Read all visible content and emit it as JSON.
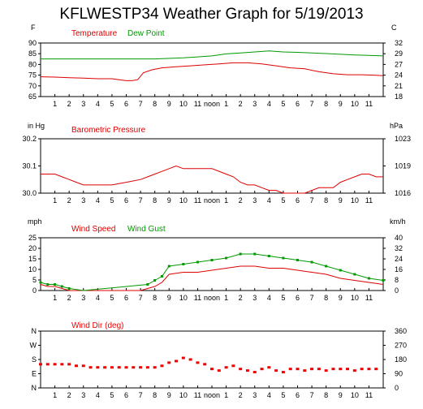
{
  "page": {
    "title": "KFLWESTP34 Weather Graph for 5/19/2013"
  },
  "colors": {
    "temperature": "#dd0000",
    "dew_point": "#009900",
    "pressure": "#dd0000",
    "wind_speed": "#dd0000",
    "wind_gust": "#009900",
    "wind_dir": "#ee0000"
  },
  "hour_labels": [
    "1",
    "2",
    "3",
    "4",
    "5",
    "6",
    "7",
    "8",
    "9",
    "10",
    "11",
    "noon",
    "1",
    "2",
    "3",
    "4",
    "5",
    "6",
    "7",
    "8",
    "9",
    "10",
    "11"
  ],
  "chart_data": [
    {
      "type": "line",
      "x_unit": "hour of day",
      "xlim": [
        0,
        24
      ],
      "left_unit": "F",
      "right_unit": "C",
      "ylim": [
        65,
        92
      ],
      "ylim_right": [
        18,
        33.3
      ],
      "left_ticks": [
        "90",
        "85",
        "80",
        "75",
        "70",
        "65"
      ],
      "right_ticks": [
        "32",
        "29",
        "27",
        "24",
        "21",
        "18"
      ],
      "series": [
        {
          "name": "Temperature",
          "x": [
            0,
            1,
            2,
            3,
            4,
            5,
            5.5,
            6,
            6.4,
            6.8,
            7.2,
            7.8,
            8.5,
            9.5,
            10.5,
            11.5,
            12.5,
            13.5,
            14.5,
            15.5,
            16.5,
            17.5,
            18.5,
            19.5,
            20.5,
            21.5,
            22.5,
            23.5,
            24
          ],
          "y": [
            75,
            74.8,
            74.5,
            74.3,
            74,
            74,
            73.5,
            73,
            73,
            73.5,
            77,
            78.5,
            79.5,
            80,
            80.5,
            81,
            81.5,
            82,
            82,
            81.5,
            80.5,
            79.5,
            79,
            77.5,
            76.5,
            76,
            76,
            75.7,
            75.5
          ]
        },
        {
          "name": "Dew Point",
          "x": [
            0,
            2,
            4,
            6,
            8,
            10,
            11,
            12,
            13,
            14,
            15,
            16,
            17,
            18,
            19,
            20,
            21,
            22,
            23,
            24
          ],
          "y": [
            84,
            84,
            84,
            84,
            84,
            84.5,
            85,
            85.5,
            86.5,
            87,
            87.5,
            88,
            87.5,
            87.3,
            87,
            86.7,
            86.3,
            86,
            85.8,
            85.5
          ]
        }
      ]
    },
    {
      "type": "line",
      "x_unit": "hour of day",
      "xlim": [
        0,
        24
      ],
      "left_unit": "in Hg",
      "right_unit": "hPa",
      "ylim": [
        30.0,
        30.2
      ],
      "left_ticks": [
        "30.2",
        "30.1",
        "30.0"
      ],
      "right_ticks": [
        "1023",
        "1019",
        "1016"
      ],
      "series": [
        {
          "name": "Barometric Pressure",
          "x": [
            0,
            1,
            1.5,
            2,
            2.5,
            3,
            4,
            5,
            6,
            7,
            7.5,
            8,
            8.5,
            9,
            9.5,
            10,
            10.5,
            11,
            11.5,
            12,
            13,
            13.5,
            14,
            14.5,
            15,
            15.5,
            16,
            16.5,
            17,
            17.5,
            18,
            18.5,
            19,
            19.5,
            20,
            20.5,
            21,
            21.5,
            22,
            22.5,
            23,
            23.5,
            24
          ],
          "y": [
            30.07,
            30.07,
            30.06,
            30.05,
            30.04,
            30.03,
            30.03,
            30.03,
            30.04,
            30.05,
            30.06,
            30.07,
            30.08,
            30.09,
            30.1,
            30.09,
            30.09,
            30.09,
            30.09,
            30.09,
            30.07,
            30.06,
            30.04,
            30.03,
            30.03,
            30.02,
            30.01,
            30.01,
            30.0,
            30.0,
            30.0,
            30.0,
            30.01,
            30.02,
            30.02,
            30.02,
            30.04,
            30.05,
            30.06,
            30.07,
            30.07,
            30.06,
            30.06
          ]
        }
      ]
    },
    {
      "type": "line",
      "x_unit": "hour of day",
      "xlim": [
        0,
        24
      ],
      "left_unit": "mph",
      "right_unit": "km/h",
      "ylim": [
        0,
        26
      ],
      "left_ticks": [
        "25",
        "20",
        "15",
        "10",
        "5",
        "0"
      ],
      "right_ticks": [
        "40",
        "32",
        "24",
        "16",
        "8",
        "0"
      ],
      "series": [
        {
          "name": "Wind Speed",
          "x": [
            0,
            0.5,
            1,
            1.5,
            2,
            3,
            4,
            5,
            6,
            7,
            7.5,
            8,
            8.5,
            9,
            10,
            11,
            12,
            13,
            14,
            15,
            16,
            17,
            18,
            19,
            20,
            21,
            22,
            23,
            24
          ],
          "y": [
            3,
            2,
            2,
            1,
            0,
            0,
            0,
            0,
            0,
            0,
            1,
            2,
            4,
            8,
            9,
            9,
            10,
            11,
            12,
            12,
            11,
            11,
            10,
            9,
            8,
            6,
            5,
            4,
            3
          ]
        },
        {
          "name": "Wind Gust",
          "x": [
            0,
            0.5,
            1,
            1.5,
            2,
            3,
            7.5,
            8,
            8.5,
            9,
            10,
            11,
            12,
            13,
            14,
            15,
            16,
            17,
            18,
            19,
            20,
            21,
            22,
            23,
            24
          ],
          "y": [
            4,
            3,
            3,
            2,
            1,
            0,
            3,
            5,
            7,
            12,
            13,
            14,
            15,
            16,
            18,
            18,
            17,
            16,
            15,
            14,
            12,
            10,
            8,
            6,
            5
          ]
        }
      ]
    },
    {
      "type": "scatter",
      "x_unit": "hour of day",
      "xlim": [
        0,
        24
      ],
      "left_unit": "",
      "right_unit": "",
      "ylim": [
        0,
        360
      ],
      "left_ticks": [
        "N",
        "W",
        "S",
        "E",
        "N"
      ],
      "right_ticks": [
        "360",
        "270",
        "180",
        "90",
        "0"
      ],
      "series": [
        {
          "name": "Wind Dir (deg)",
          "x": [
            0,
            0.5,
            1,
            1.5,
            2,
            2.5,
            3,
            3.5,
            4,
            4.5,
            5,
            5.5,
            6,
            6.5,
            7,
            7.5,
            8,
            8.5,
            9,
            9.5,
            10,
            10.5,
            11,
            11.5,
            12,
            12.5,
            13,
            13.5,
            14,
            14.5,
            15,
            15.5,
            16,
            16.5,
            17,
            17.5,
            18,
            18.5,
            19,
            19.5,
            20,
            20.5,
            21,
            21.5,
            22,
            22.5,
            23,
            23.5
          ],
          "y": [
            150,
            150,
            150,
            150,
            150,
            140,
            140,
            130,
            130,
            130,
            130,
            130,
            130,
            130,
            130,
            130,
            130,
            140,
            160,
            170,
            190,
            180,
            160,
            150,
            120,
            110,
            130,
            140,
            120,
            110,
            100,
            120,
            130,
            110,
            100,
            120,
            120,
            110,
            120,
            120,
            110,
            120,
            120,
            120,
            110,
            120,
            120,
            120
          ]
        }
      ]
    }
  ]
}
